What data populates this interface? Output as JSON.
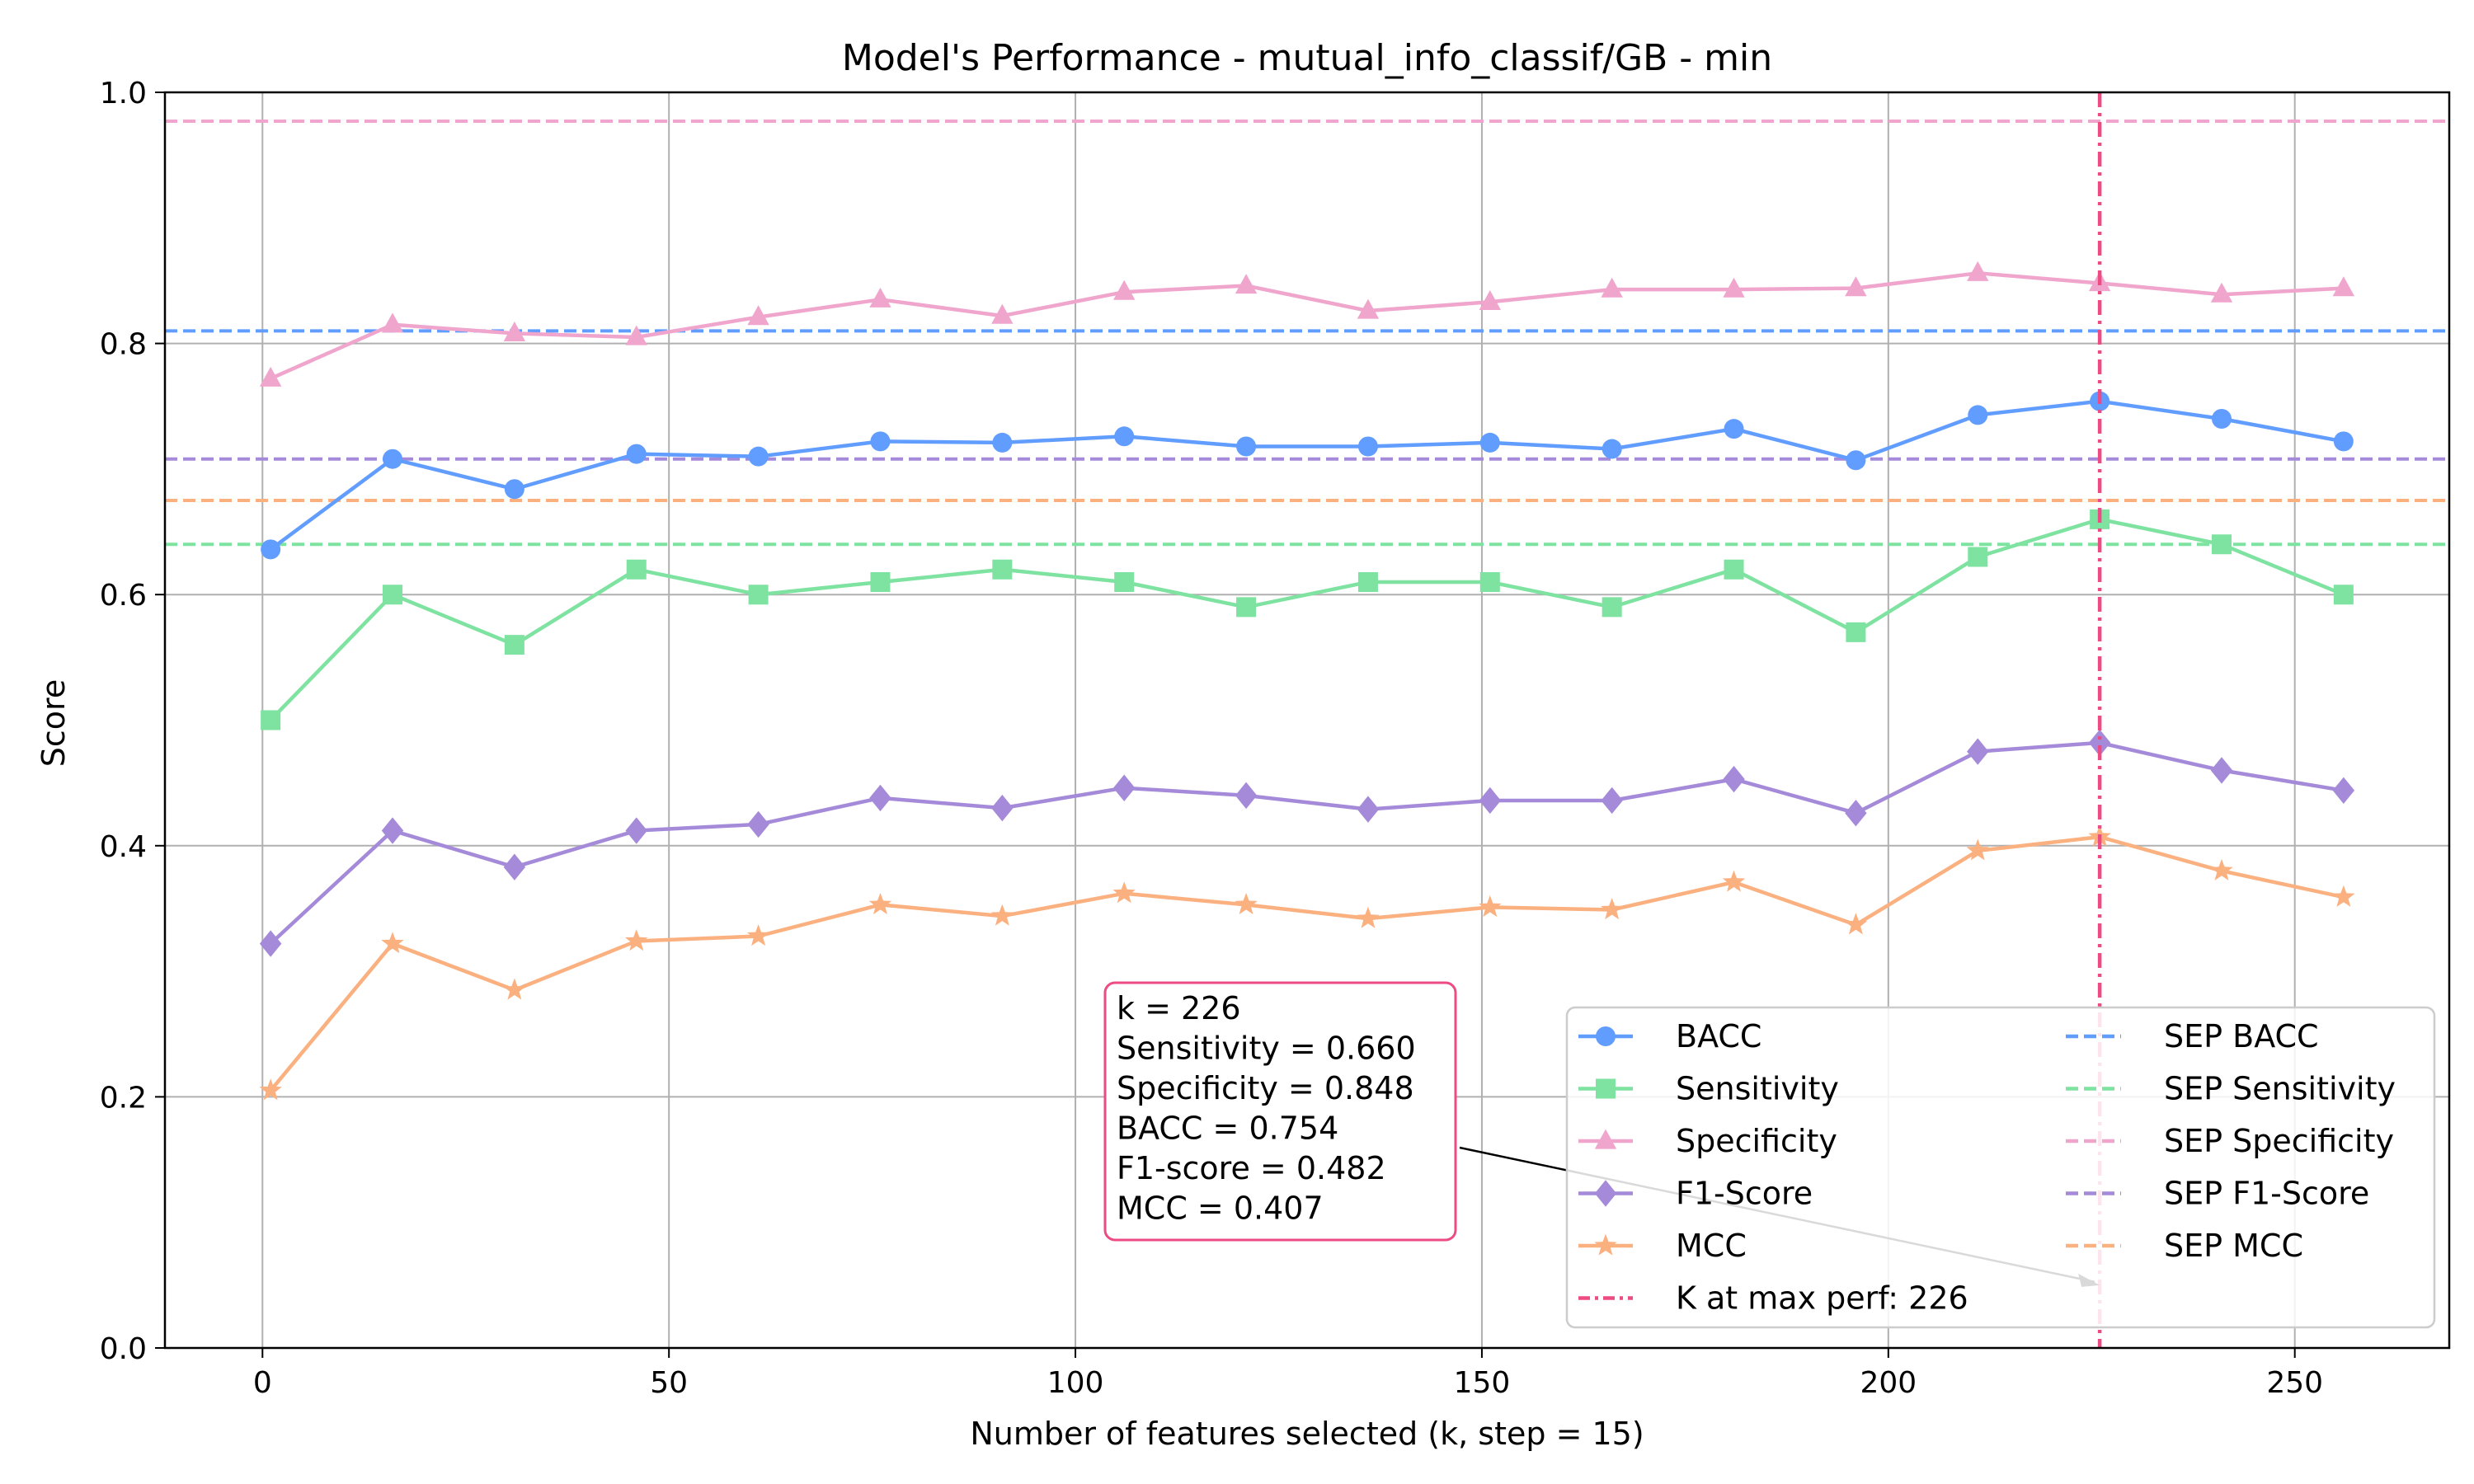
{
  "chart_data": {
    "type": "line",
    "title": "Model's Performance - mutual_info_classif/GB - min",
    "xlabel": "Number of features selected (k, step = 15)",
    "ylabel": "Score",
    "xlim": [
      -12,
      269
    ],
    "ylim": [
      0,
      1.0
    ],
    "xticks": [
      0,
      50,
      100,
      150,
      200,
      250
    ],
    "yticks": [
      0.0,
      0.2,
      0.4,
      0.6,
      0.8,
      1.0
    ],
    "xtick_labels": [
      "0",
      "50",
      "100",
      "150",
      "200",
      "250"
    ],
    "ytick_labels": [
      "0.0",
      "0.2",
      "0.4",
      "0.6",
      "0.8",
      "1.0"
    ],
    "grid": true,
    "x": [
      1,
      16,
      31,
      46,
      61,
      76,
      91,
      106,
      121,
      136,
      151,
      166,
      181,
      196,
      211,
      226,
      241,
      256
    ],
    "series": [
      {
        "name": "BACC",
        "color": "#619cff",
        "marker": "circle",
        "values": [
          0.636,
          0.708,
          0.684,
          0.712,
          0.71,
          0.722,
          0.721,
          0.726,
          0.718,
          0.718,
          0.721,
          0.716,
          0.732,
          0.707,
          0.743,
          0.754,
          0.74,
          0.722
        ]
      },
      {
        "name": "Sensitivity",
        "color": "#7ee2a0",
        "marker": "square",
        "values": [
          0.5,
          0.6,
          0.56,
          0.62,
          0.6,
          0.61,
          0.62,
          0.61,
          0.59,
          0.61,
          0.61,
          0.59,
          0.62,
          0.57,
          0.63,
          0.66,
          0.64,
          0.6
        ]
      },
      {
        "name": "Specificity",
        "color": "#f0a5cd",
        "marker": "triangle",
        "values": [
          0.772,
          0.815,
          0.808,
          0.805,
          0.821,
          0.835,
          0.822,
          0.841,
          0.846,
          0.826,
          0.833,
          0.843,
          0.843,
          0.844,
          0.856,
          0.848,
          0.839,
          0.844
        ]
      },
      {
        "name": "F1-Score",
        "color": "#a48ad9",
        "marker": "diamond",
        "values": [
          0.322,
          0.412,
          0.383,
          0.412,
          0.417,
          0.438,
          0.43,
          0.446,
          0.44,
          0.429,
          0.436,
          0.436,
          0.453,
          0.426,
          0.475,
          0.482,
          0.46,
          0.444
        ]
      },
      {
        "name": "MCC",
        "color": "#fbb080",
        "marker": "star",
        "values": [
          0.205,
          0.322,
          0.285,
          0.324,
          0.328,
          0.353,
          0.344,
          0.362,
          0.353,
          0.342,
          0.351,
          0.349,
          0.371,
          0.337,
          0.396,
          0.407,
          0.38,
          0.359
        ]
      }
    ],
    "reference_lines": [
      {
        "name": "SEP BACC",
        "color": "#619cff",
        "value": 0.81
      },
      {
        "name": "SEP Sensitivity",
        "color": "#7ee2a0",
        "value": 0.64
      },
      {
        "name": "SEP Specificity",
        "color": "#f0a5cd",
        "value": 0.977
      },
      {
        "name": "SEP F1-Score",
        "color": "#a48ad9",
        "value": 0.708
      },
      {
        "name": "SEP MCC",
        "color": "#fbb080",
        "value": 0.675
      }
    ],
    "vertical_line": {
      "name": "K at max perf: 226",
      "color": "#ee4b84",
      "x": 226
    },
    "annotation": {
      "lines": [
        "k = 226",
        "Sensitivity = 0.660",
        "Specificity = 0.848",
        "BACC = 0.754",
        "F1-score = 0.482",
        "MCC = 0.407"
      ],
      "arrow_target": {
        "x": 226,
        "y": 0.05
      },
      "border_color": "#ee4b84"
    },
    "legend": {
      "placement": "lower-right",
      "columns": 2
    }
  }
}
